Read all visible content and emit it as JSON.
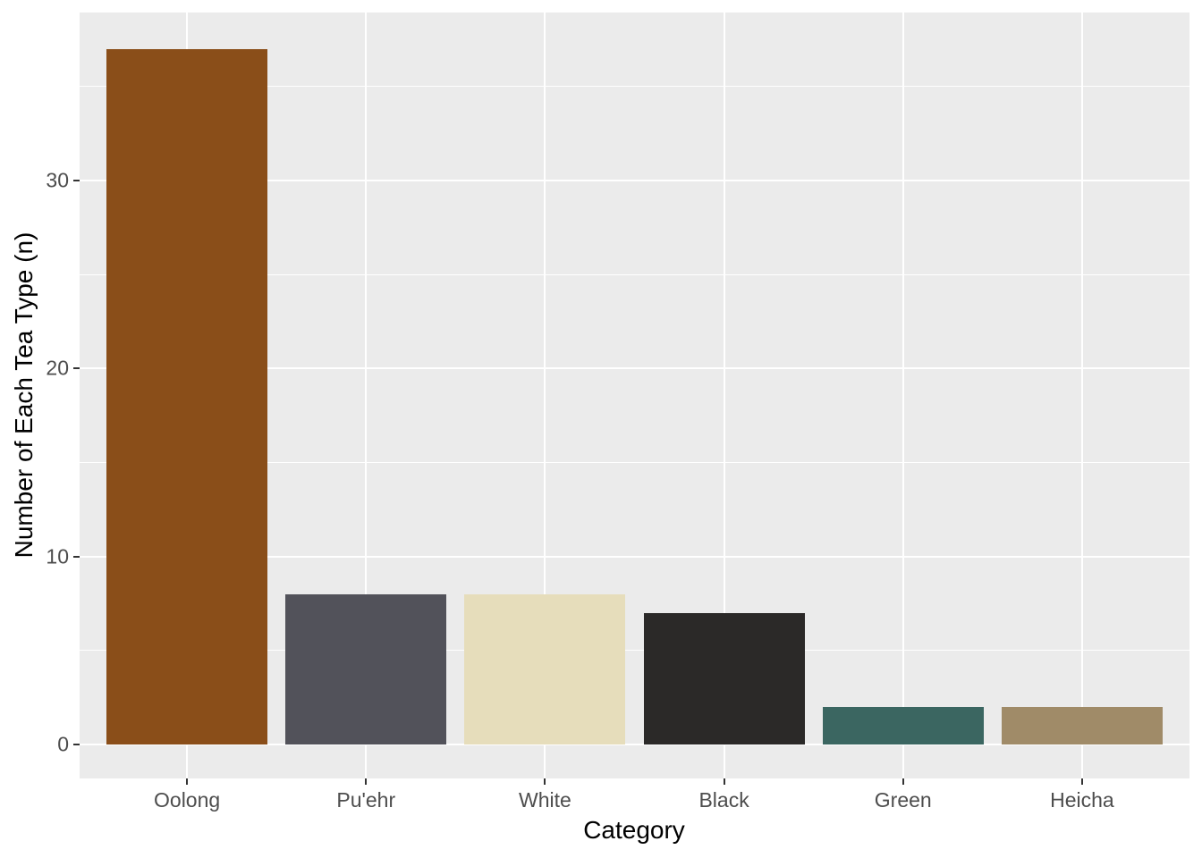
{
  "chart_data": {
    "type": "bar",
    "categories": [
      "Oolong",
      "Pu'ehr",
      "White",
      "Black",
      "Green",
      "Heicha"
    ],
    "values": [
      37,
      8,
      8,
      7,
      2,
      2
    ],
    "bar_colors": [
      "#8A4E19",
      "#52525A",
      "#E6DDBB",
      "#2B2928",
      "#3B6661",
      "#A08B68"
    ],
    "title": "",
    "xlabel": "Category",
    "ylabel": "Number of Each Tea Type (n)",
    "ylim": [
      0,
      39
    ],
    "yticks": [
      0,
      10,
      20,
      30
    ],
    "ytick_labels": [
      "0",
      "10",
      "20",
      "30"
    ],
    "yticks_minor": [
      5,
      15,
      25,
      35
    ],
    "grid": true,
    "legend": false,
    "bar_width_fraction": 0.9,
    "colors": {
      "panel_background": "#EBEBEB",
      "grid": "#FFFFFF",
      "tick_labels": "#4D4D4D",
      "axis_titles": "#000000",
      "tick_marks": "#333333",
      "figure_background": "#FFFFFF"
    }
  }
}
